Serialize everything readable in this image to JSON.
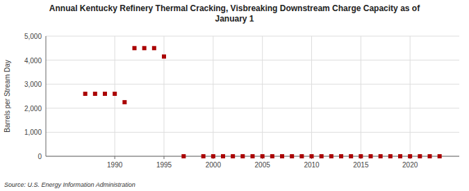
{
  "chart_data": {
    "type": "scatter",
    "title": "Annual Kentucky Refinery Thermal Cracking, Visbreaking Downstream Charge Capacity as of\nJanuary  1",
    "ylabel": "Barrels per Stream Day",
    "source": "Source: U.S. Energy Information Administration",
    "color": "#aa0000",
    "marker": "square",
    "grid": true,
    "x": [
      1987,
      1988,
      1989,
      1990,
      1991,
      1992,
      1993,
      1994,
      1995,
      1997,
      1999,
      2000,
      2001,
      2002,
      2003,
      2004,
      2005,
      2006,
      2007,
      2008,
      2009,
      2010,
      2011,
      2012,
      2013,
      2014,
      2015,
      2016,
      2017,
      2018,
      2019,
      2020,
      2021,
      2022,
      2023
    ],
    "values": [
      2600,
      2600,
      2600,
      2600,
      2250,
      4500,
      4500,
      4500,
      4150,
      0,
      0,
      0,
      0,
      0,
      0,
      0,
      0,
      0,
      0,
      0,
      0,
      0,
      0,
      0,
      0,
      0,
      0,
      0,
      0,
      0,
      0,
      0,
      0,
      0,
      0
    ],
    "xlim": [
      1983,
      2025
    ],
    "xticks": [
      1990,
      1995,
      2000,
      2005,
      2010,
      2015,
      2020
    ],
    "ylim": [
      0,
      5000
    ],
    "yticks": [
      0,
      {
        "value": 1000,
        "label": "1,000"
      },
      {
        "value": 2000,
        "label": "2,000"
      },
      {
        "value": 3000,
        "label": "3,000"
      },
      {
        "value": 4000,
        "label": "4,000"
      },
      {
        "value": 5000,
        "label": "5,000"
      }
    ]
  }
}
